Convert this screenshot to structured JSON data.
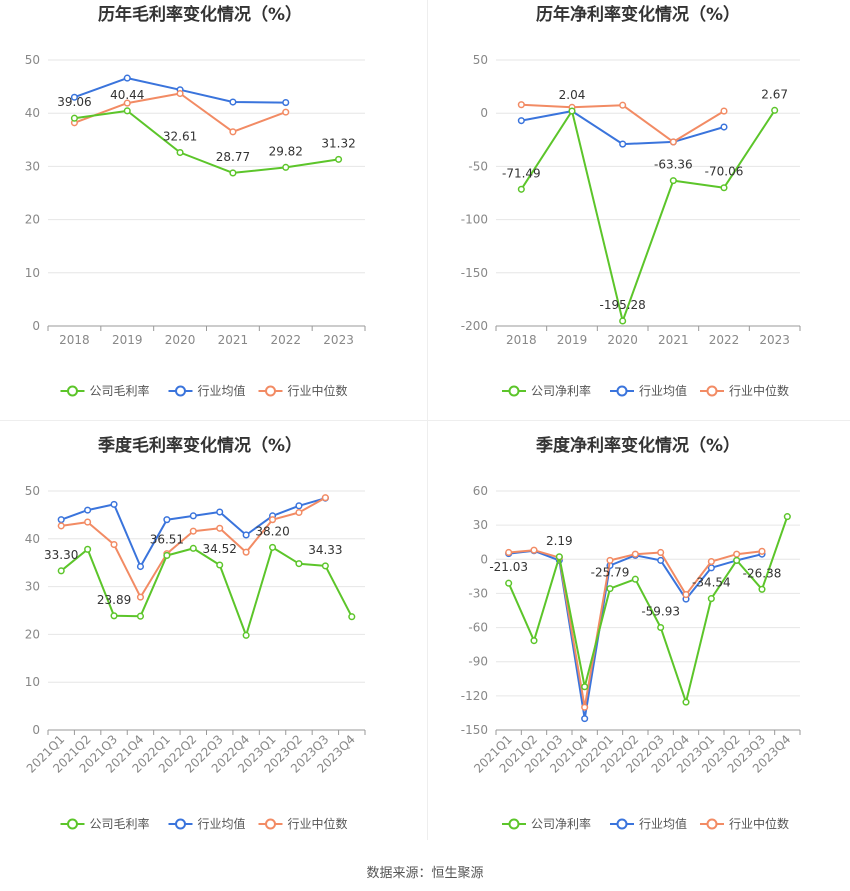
{
  "source": {
    "label": "数据来源：",
    "name": "恒生聚源"
  },
  "colors": {
    "company": "#5cc52a",
    "industry_avg": "#3a74dc",
    "industry_median": "#f28b64",
    "grid": "#e6e6e6",
    "axis": "#999999",
    "tick": "#888888",
    "title": "#333333",
    "label": "#333333"
  },
  "legend": {
    "avg": "行业均值",
    "median": "行业中位数"
  },
  "chart_data": [
    {
      "type": "line",
      "title": "历年毛利率变化情况（%）",
      "categories": [
        "2018",
        "2019",
        "2020",
        "2021",
        "2022",
        "2023"
      ],
      "ylim": [
        0,
        50
      ],
      "yticks": [
        0,
        10,
        20,
        30,
        40,
        50
      ],
      "series": [
        {
          "key": "company",
          "name": "公司毛利率",
          "values": [
            39.06,
            40.44,
            32.61,
            28.77,
            29.82,
            31.32
          ]
        },
        {
          "key": "industry_avg",
          "name": "行业均值",
          "values": [
            43.0,
            46.6,
            44.4,
            42.1,
            42.0,
            null
          ]
        },
        {
          "key": "industry_median",
          "name": "行业中位数",
          "values": [
            38.2,
            41.9,
            43.7,
            36.5,
            40.2,
            null
          ]
        }
      ],
      "labels": [
        {
          "index": 0,
          "text": "39.06"
        },
        {
          "index": 1,
          "text": "40.44"
        },
        {
          "index": 2,
          "text": "32.61"
        },
        {
          "index": 3,
          "text": "28.77"
        },
        {
          "index": 4,
          "text": "29.82"
        },
        {
          "index": 5,
          "text": "31.32"
        }
      ]
    },
    {
      "type": "line",
      "title": "历年净利率变化情况（%）",
      "categories": [
        "2018",
        "2019",
        "2020",
        "2021",
        "2022",
        "2023"
      ],
      "ylim": [
        -200,
        50
      ],
      "yticks": [
        -200,
        -150,
        -100,
        -50,
        0,
        50
      ],
      "series": [
        {
          "key": "company",
          "name": "公司净利率",
          "values": [
            -71.49,
            2.04,
            -195.28,
            -63.36,
            -70.06,
            2.67
          ]
        },
        {
          "key": "industry_avg",
          "name": "行业均值",
          "values": [
            -7.0,
            2.0,
            -29.0,
            -27.0,
            -13.0,
            null
          ]
        },
        {
          "key": "industry_median",
          "name": "行业中位数",
          "values": [
            8.0,
            5.5,
            7.5,
            -27.0,
            2.0,
            null
          ]
        }
      ],
      "labels": [
        {
          "index": 0,
          "text": "-71.49"
        },
        {
          "index": 1,
          "text": "2.04"
        },
        {
          "index": 2,
          "text": "-195.28"
        },
        {
          "index": 3,
          "text": "-63.36"
        },
        {
          "index": 4,
          "text": "-70.06"
        },
        {
          "index": 5,
          "text": "2.67"
        }
      ]
    },
    {
      "type": "line",
      "title": "季度毛利率变化情况（%）",
      "categories": [
        "2021Q1",
        "2021Q2",
        "2021Q3",
        "2021Q4",
        "2022Q1",
        "2022Q2",
        "2022Q3",
        "2022Q4",
        "2023Q1",
        "2023Q2",
        "2023Q3",
        "2023Q4"
      ],
      "ylim": [
        0,
        50
      ],
      "yticks": [
        0,
        10,
        20,
        30,
        40,
        50
      ],
      "series": [
        {
          "key": "company",
          "name": "公司毛利率",
          "values": [
            33.3,
            37.8,
            23.89,
            23.8,
            36.51,
            38.0,
            34.52,
            19.8,
            38.2,
            34.8,
            34.33,
            23.7
          ]
        },
        {
          "key": "industry_avg",
          "name": "行业均值",
          "values": [
            44.0,
            46.0,
            47.2,
            34.2,
            44.0,
            44.8,
            45.6,
            40.8,
            44.8,
            46.9,
            48.5,
            null
          ]
        },
        {
          "key": "industry_median",
          "name": "行业中位数",
          "values": [
            42.7,
            43.5,
            38.8,
            27.8,
            36.9,
            41.6,
            42.2,
            37.2,
            44.0,
            45.5,
            48.6,
            null
          ]
        }
      ],
      "labels": [
        {
          "index": 0,
          "text": "33.30"
        },
        {
          "index": 2,
          "text": "23.89"
        },
        {
          "index": 4,
          "text": "36.51"
        },
        {
          "index": 6,
          "text": "34.52"
        },
        {
          "index": 8,
          "text": "38.20"
        },
        {
          "index": 10,
          "text": "34.33"
        }
      ]
    },
    {
      "type": "line",
      "title": "季度净利率变化情况（%）",
      "categories": [
        "2021Q1",
        "2021Q2",
        "2021Q3",
        "2021Q4",
        "2022Q1",
        "2022Q2",
        "2022Q3",
        "2022Q4",
        "2023Q1",
        "2023Q2",
        "2023Q3",
        "2023Q4"
      ],
      "ylim": [
        -150,
        60
      ],
      "yticks": [
        -150,
        -120,
        -90,
        -60,
        -30,
        0,
        30,
        60
      ],
      "series": [
        {
          "key": "company",
          "name": "公司净利率",
          "values": [
            -21.03,
            -71.5,
            2.19,
            -112.0,
            -25.79,
            -17.5,
            -59.93,
            -125.5,
            -34.54,
            -1.0,
            -26.38,
            37.5
          ]
        },
        {
          "key": "industry_avg",
          "name": "行业均值",
          "values": [
            5.0,
            7.5,
            -1.0,
            -140.0,
            -5.5,
            3.5,
            -1.0,
            -35.0,
            -7.5,
            -1.0,
            4.5,
            null
          ]
        },
        {
          "key": "industry_median",
          "name": "行业中位数",
          "values": [
            6.0,
            8.0,
            1.5,
            -130.0,
            -1.0,
            4.5,
            6.0,
            -31.0,
            -2.0,
            4.5,
            7.0,
            null
          ]
        }
      ],
      "labels": [
        {
          "index": 0,
          "text": "-21.03"
        },
        {
          "index": 2,
          "text": "2.19"
        },
        {
          "index": 4,
          "text": "-25.79"
        },
        {
          "index": 6,
          "text": "-59.93"
        },
        {
          "index": 8,
          "text": "-34.54"
        },
        {
          "index": 10,
          "text": "-26.38"
        }
      ]
    }
  ]
}
